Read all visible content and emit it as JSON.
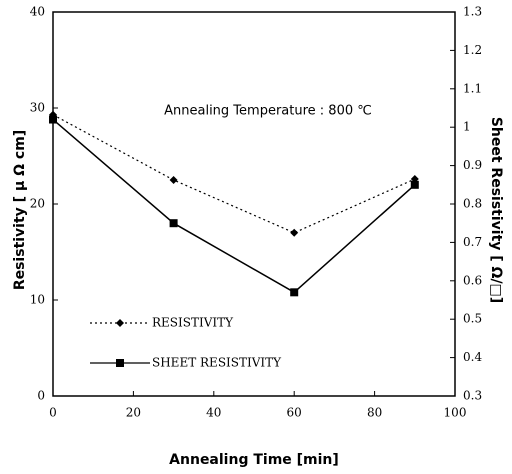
{
  "chart_data": {
    "type": "line",
    "annotation": "Annealing Temperature : 800 ℃",
    "xlabel": "Annealing Time [min]",
    "ylabel": "Resistivity [ μ Ω cm]",
    "y2label": "Sheet Resistivity [ Ω/□]",
    "x": [
      0,
      30,
      60,
      90
    ],
    "xlim": [
      0,
      100
    ],
    "xticks": [
      0,
      20,
      40,
      60,
      80,
      100
    ],
    "ylim": [
      0,
      40
    ],
    "yticks": [
      0,
      10,
      20,
      30,
      40
    ],
    "y2lim": [
      0.3,
      1.3
    ],
    "y2ticks": [
      0.3,
      0.4,
      0.5,
      0.6,
      0.7,
      0.8,
      0.9,
      1,
      1.1,
      1.2,
      1.3
    ],
    "series": [
      {
        "name": "RESISTIVITY",
        "color": "#000000",
        "values": [
          29.3,
          22.5,
          17.0,
          22.6
        ]
      },
      {
        "name": "SHEET RESISTIVITY",
        "color": "#000000",
        "axis": "y2",
        "values": [
          1.02,
          0.75,
          0.57,
          0.85
        ]
      }
    ]
  }
}
